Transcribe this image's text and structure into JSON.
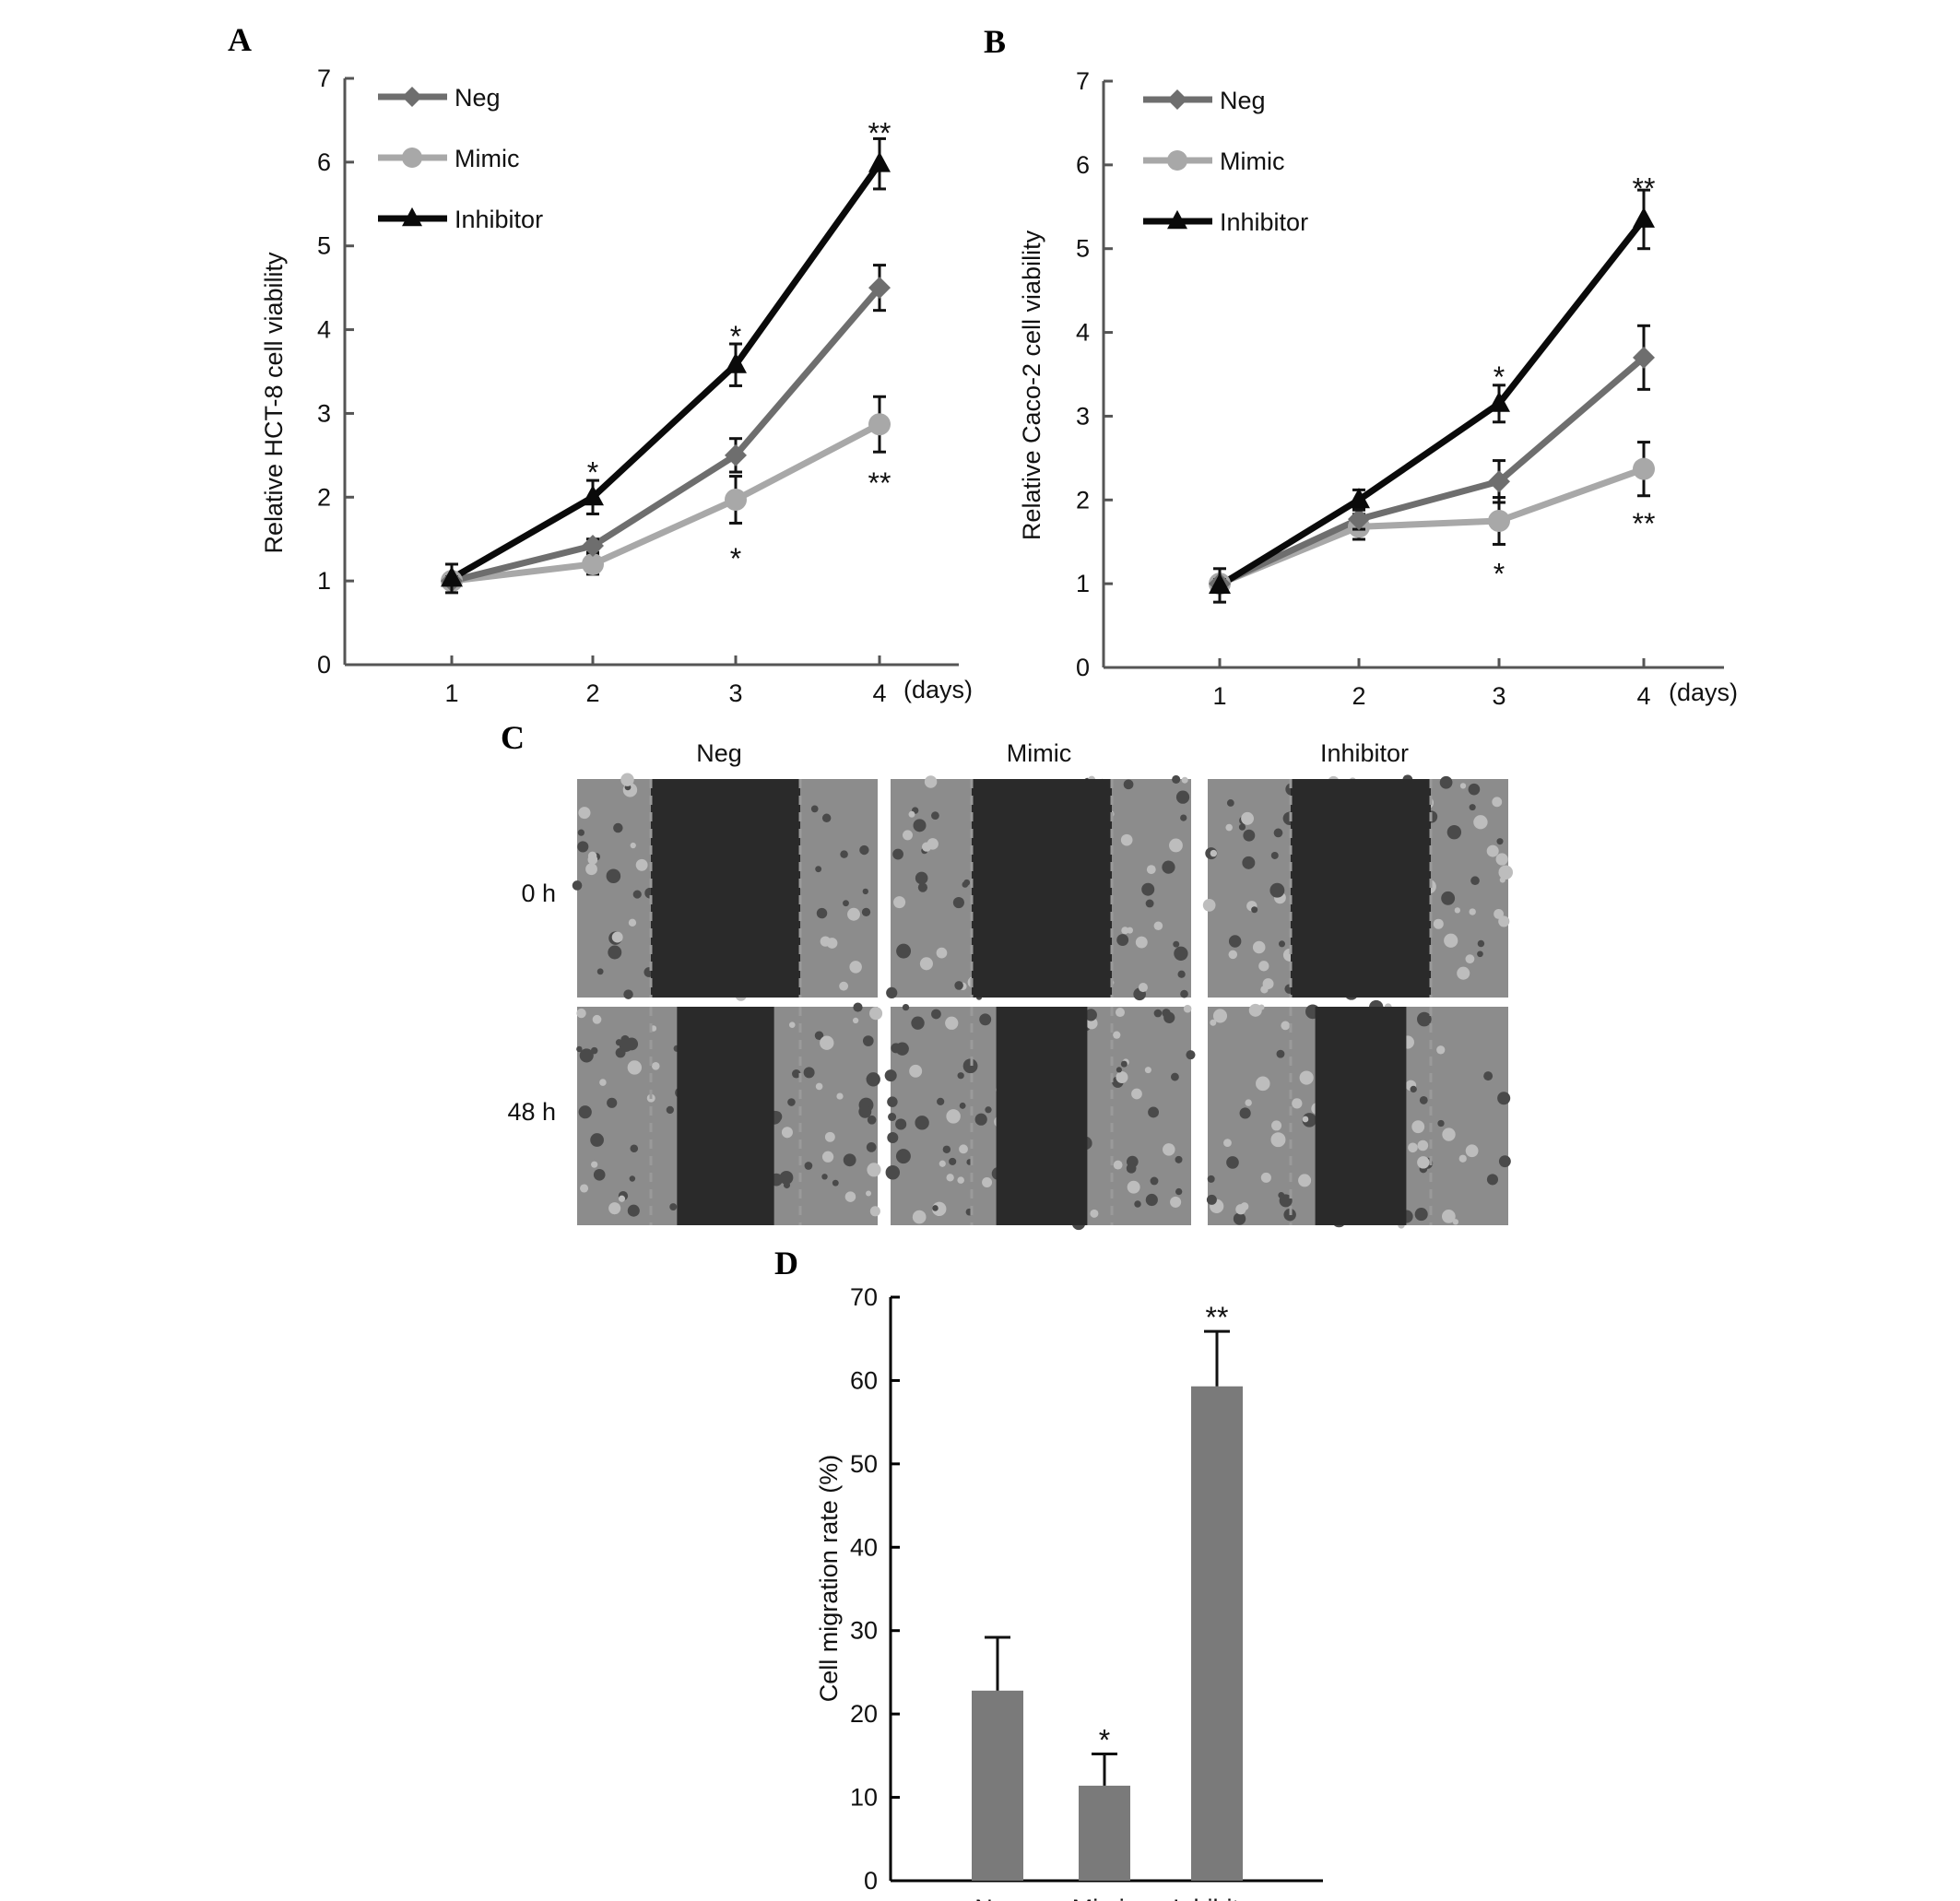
{
  "colors": {
    "axis": "#555555",
    "Neg": "#6e6e6e",
    "Mimic": "#a8a8a8",
    "Inhibitor": "#0a0a0a",
    "bar": "#7a7a7a",
    "error": "#111111",
    "micrograph_bg": "#2a2a2a",
    "cells": "#8c8c8c"
  },
  "panels": {
    "A": "A",
    "B": "B",
    "C": "C",
    "D": "D"
  },
  "chart_data": [
    {
      "id": "A",
      "type": "line",
      "ylabel": "Relative HCT-8 cell viability",
      "xlabel": "(days)",
      "x": [
        1,
        2,
        3,
        4
      ],
      "xticks": [
        "1",
        "2",
        "3",
        "4"
      ],
      "ylim": [
        0,
        7
      ],
      "yticks": [
        "0",
        "1",
        "2",
        "3",
        "4",
        "5",
        "6",
        "7"
      ],
      "legend": [
        "Neg",
        "Mimic",
        "Inhibitor"
      ],
      "series": [
        {
          "name": "Neg",
          "marker": "diamond",
          "values": [
            1.0,
            1.42,
            2.5,
            4.5
          ],
          "errors": [
            0.05,
            0.08,
            0.2,
            0.27
          ]
        },
        {
          "name": "Mimic",
          "marker": "circle",
          "values": [
            1.0,
            1.2,
            1.97,
            2.87
          ],
          "errors": [
            0.05,
            0.12,
            0.28,
            0.33
          ]
        },
        {
          "name": "Inhibitor",
          "marker": "triangle",
          "values": [
            1.03,
            2.0,
            3.58,
            5.98
          ],
          "errors": [
            0.17,
            0.2,
            0.25,
            0.3
          ]
        }
      ],
      "annotations": [
        {
          "text": "*",
          "x": 2,
          "y": 2.33
        },
        {
          "text": "*",
          "x": 3,
          "y": 3.95
        },
        {
          "text": "**",
          "x": 4,
          "y": 6.38
        },
        {
          "text": "*",
          "x": 3,
          "y": 1.3
        },
        {
          "text": "**",
          "x": 4,
          "y": 2.2
        }
      ]
    },
    {
      "id": "B",
      "type": "line",
      "ylabel": "Relative Caco-2 cell viability",
      "xlabel": "(days)",
      "x": [
        1,
        2,
        3,
        4
      ],
      "xticks": [
        "1",
        "2",
        "3",
        "4"
      ],
      "ylim": [
        0,
        7
      ],
      "yticks": [
        "0",
        "1",
        "2",
        "3",
        "4",
        "5",
        "6",
        "7"
      ],
      "legend": [
        "Neg",
        "Mimic",
        "Inhibitor"
      ],
      "series": [
        {
          "name": "Neg",
          "marker": "diamond",
          "values": [
            1.0,
            1.77,
            2.22,
            3.7
          ],
          "errors": [
            0.05,
            0.12,
            0.25,
            0.38
          ]
        },
        {
          "name": "Mimic",
          "marker": "circle",
          "values": [
            1.0,
            1.68,
            1.75,
            2.37
          ],
          "errors": [
            0.05,
            0.15,
            0.28,
            0.32
          ]
        },
        {
          "name": "Inhibitor",
          "marker": "triangle",
          "values": [
            0.98,
            2.0,
            3.15,
            5.35
          ],
          "errors": [
            0.2,
            0.12,
            0.22,
            0.35
          ]
        }
      ],
      "annotations": [
        {
          "text": "*",
          "x": 3,
          "y": 3.5
        },
        {
          "text": "**",
          "x": 4,
          "y": 5.75
        },
        {
          "text": "*",
          "x": 3,
          "y": 1.15
        },
        {
          "text": "**",
          "x": 4,
          "y": 1.75
        }
      ]
    },
    {
      "id": "D",
      "type": "bar",
      "ylabel": "Cell migration rate (%)",
      "categories": [
        "Neg",
        "Mimic",
        "Inhibitor"
      ],
      "values": [
        22.8,
        11.4,
        59.3
      ],
      "errors": [
        6.4,
        3.8,
        6.6
      ],
      "ylim": [
        0,
        70
      ],
      "yticks": [
        "0",
        "10",
        "20",
        "30",
        "40",
        "50",
        "60",
        "70"
      ],
      "annotations": [
        {
          "text": "*",
          "category": "Mimic"
        },
        {
          "text": "**",
          "category": "Inhibitor"
        }
      ]
    }
  ],
  "micrographs": {
    "columns": [
      "Neg",
      "Mimic",
      "Inhibitor"
    ],
    "rows": [
      "0 h",
      "48 h"
    ]
  }
}
